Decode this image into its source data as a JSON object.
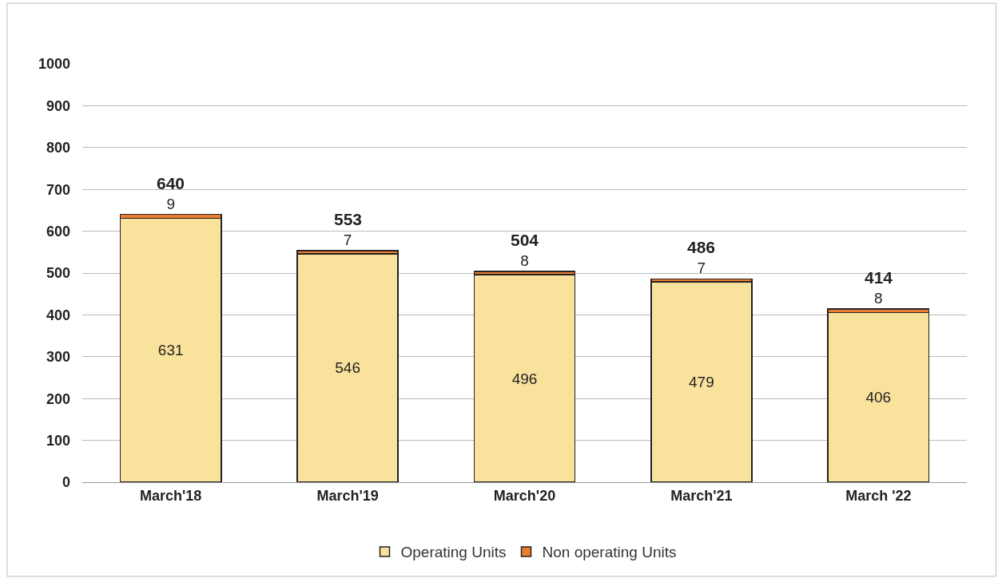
{
  "chart_data": {
    "type": "bar",
    "stacked": true,
    "categories": [
      "March'18",
      "March'19",
      "March'20",
      "March'21",
      "March '22"
    ],
    "series": [
      {
        "name": "Operating Units",
        "color": "#f9e29c",
        "values": [
          631,
          546,
          496,
          479,
          406
        ]
      },
      {
        "name": "Non operating Units",
        "color": "#ed7d31",
        "values": [
          9,
          7,
          8,
          7,
          8
        ]
      }
    ],
    "totals": [
      "640",
      "553",
      "504",
      "486",
      "414"
    ],
    "data_labels": true,
    "ylim": [
      0,
      1000
    ],
    "yticks": [
      0,
      100,
      200,
      300,
      400,
      500,
      600,
      700,
      800,
      900,
      1000
    ],
    "grid": "y",
    "legend": "bottom"
  }
}
